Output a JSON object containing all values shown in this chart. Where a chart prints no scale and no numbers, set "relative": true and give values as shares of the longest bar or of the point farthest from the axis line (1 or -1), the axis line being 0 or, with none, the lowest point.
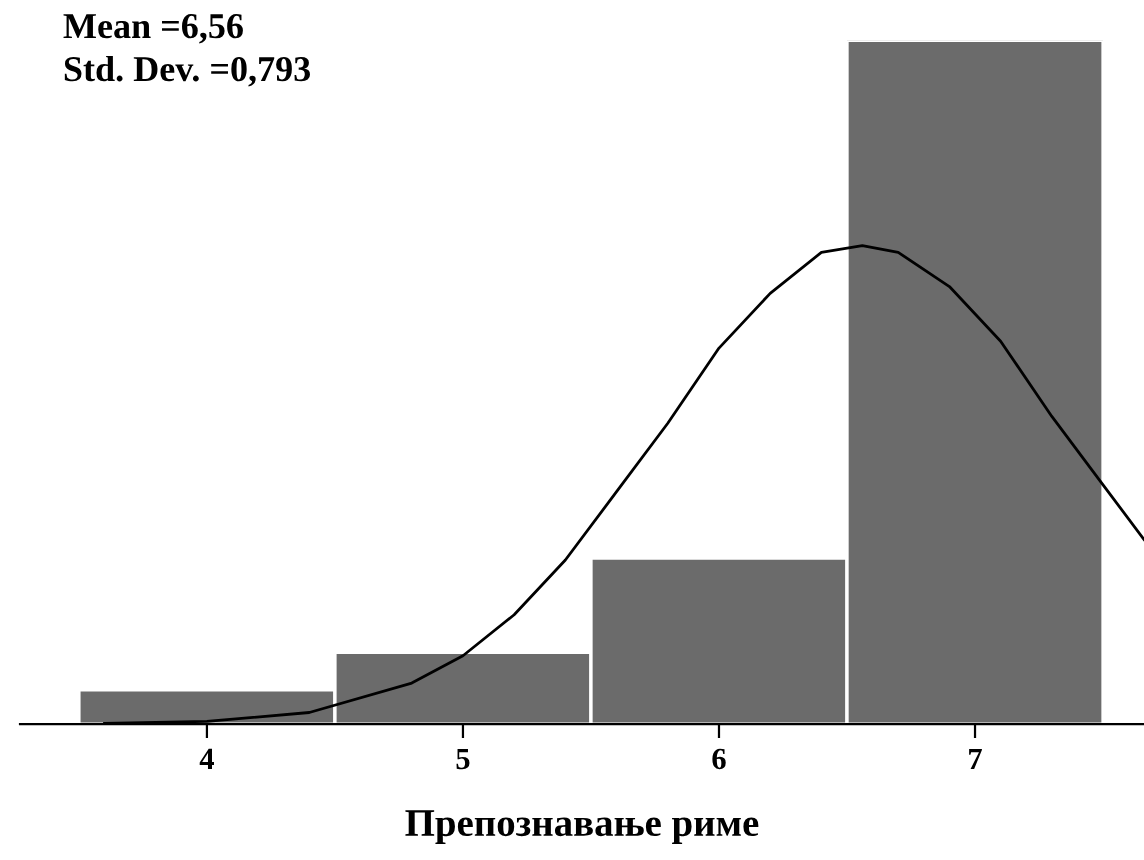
{
  "chart_data": {
    "type": "histogram",
    "relative": true,
    "xlabel": "Препознавање риме",
    "annotations": [
      "Mean =6,56",
      "Std. Dev. =0,793"
    ],
    "bins": [
      3.5,
      4.5,
      5.5,
      6.5,
      7.5
    ],
    "values": [
      0.05,
      0.105,
      0.243,
      1
    ],
    "color": "#6b6b6b",
    "xlim": [
      3.27,
      7.66
    ],
    "xticks": [
      4,
      5,
      6,
      7
    ],
    "grid": false,
    "legend": false,
    "series": [
      {
        "type": "line",
        "color": "#000000",
        "x": [
          3.6,
          4.0,
          4.4,
          4.8,
          5.0,
          5.2,
          5.4,
          5.6,
          5.8,
          6.0,
          6.2,
          6.4,
          6.56,
          6.7,
          6.9,
          7.1,
          7.3,
          7.5,
          7.66
        ],
        "values": [
          0.001,
          0.004,
          0.017,
          0.06,
          0.1,
          0.16,
          0.24,
          0.34,
          0.44,
          0.55,
          0.63,
          0.69,
          0.7,
          0.69,
          0.64,
          0.56,
          0.45,
          0.35,
          0.27
        ]
      }
    ]
  }
}
